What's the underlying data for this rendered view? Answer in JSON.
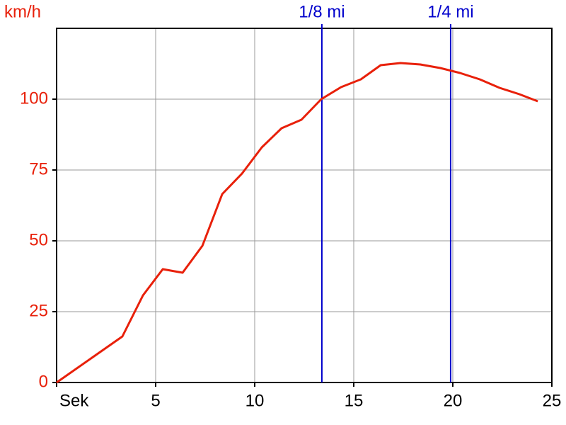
{
  "chart_data": {
    "type": "line",
    "y_label": "km/h",
    "x": [
      0,
      3.32,
      4.36,
      5.36,
      6.36,
      7.36,
      8.36,
      9.36,
      10.36,
      11.36,
      12.36,
      13.36,
      14.36,
      15.36,
      16.36,
      17.36,
      18.36,
      19.36,
      20.36,
      21.36,
      22.36,
      23.36,
      24.29
    ],
    "series": [
      {
        "color": "#e8200a",
        "values": [
          0,
          16.25,
          30.75,
          40,
          38.75,
          48.25,
          66.5,
          73.75,
          83,
          89.75,
          92.75,
          100,
          104.25,
          107,
          112,
          112.75,
          112.25,
          111,
          109.25,
          107,
          104,
          101.75,
          99.25
        ]
      }
    ],
    "markers": [
      {
        "label": "1/8 mi",
        "x": 13.39,
        "color": "#0000cc"
      },
      {
        "label": "1/4 mi",
        "x": 19.89,
        "color": "#0000cc"
      }
    ],
    "xlim": [
      0,
      25
    ],
    "ylim": [
      0,
      125
    ],
    "xticks": [
      {
        "value": 0,
        "label": "Sek"
      },
      5,
      10,
      15,
      20,
      25
    ],
    "yticks": [
      0,
      25,
      50,
      75,
      100
    ],
    "grid": true
  }
}
